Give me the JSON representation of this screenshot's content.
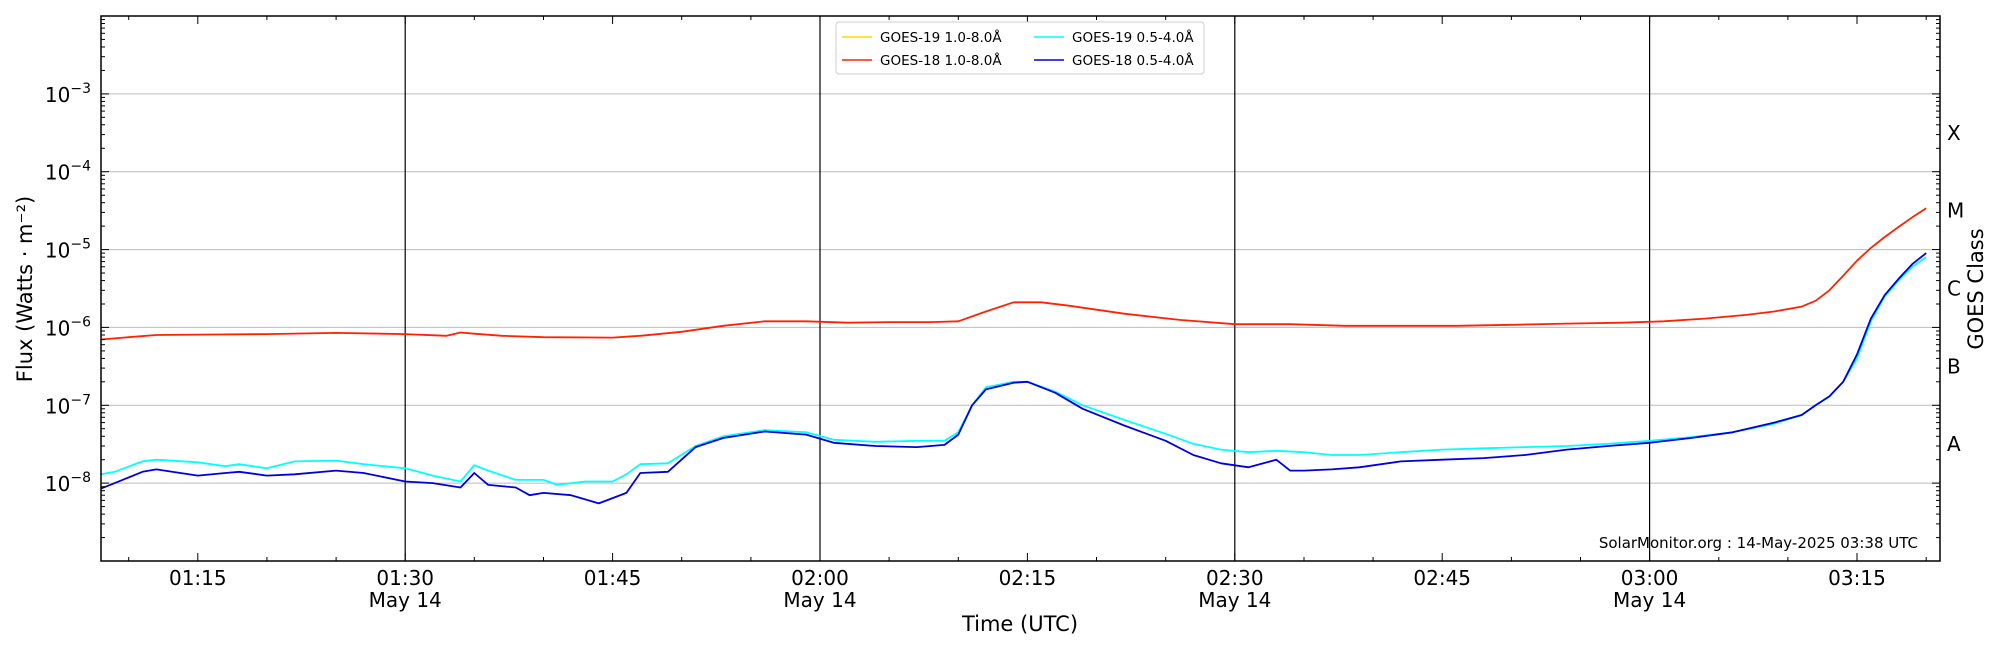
{
  "chart_data": {
    "type": "line",
    "title": "",
    "xlabel": "Time (UTC)",
    "ylabel": "Flux (Watts · m⁻²)",
    "ylabel_right": "GOES Class",
    "y_scale": "log",
    "ylim": [
      1e-09,
      0.01
    ],
    "xlim": [
      "01:08",
      "03:21"
    ],
    "x_ticks": [
      "01:15",
      "01:30",
      "01:45",
      "02:00",
      "02:15",
      "02:30",
      "02:45",
      "03:00",
      "03:15"
    ],
    "x_tick_dates": {
      "01:30": "May 14",
      "02:00": "May 14",
      "02:30": "May 14",
      "03:00": "May 14"
    },
    "vertical_lines": [
      "01:30",
      "02:00",
      "02:30",
      "03:00"
    ],
    "y_ticks": [
      {
        "value": 1e-08,
        "base": "10",
        "exp": "−8"
      },
      {
        "value": 1e-07,
        "base": "10",
        "exp": "−7"
      },
      {
        "value": 1e-06,
        "base": "10",
        "exp": "−6"
      },
      {
        "value": 1e-05,
        "base": "10",
        "exp": "−5"
      },
      {
        "value": 0.0001,
        "base": "10",
        "exp": "−4"
      },
      {
        "value": 0.001,
        "base": "10",
        "exp": "−3"
      }
    ],
    "grid": "horizontal",
    "classes": [
      {
        "label": "A",
        "value": 3.16e-08
      },
      {
        "label": "B",
        "value": 3.16e-07
      },
      {
        "label": "C",
        "value": 3.16e-06
      },
      {
        "label": "M",
        "value": 3.16e-05
      },
      {
        "label": "X",
        "value": 0.000316
      }
    ],
    "legend_position": "top-center",
    "credit": "SolarMonitor.org : 14-May-2025 03:38 UTC",
    "colors": {
      "goes19_long": "#ffd700",
      "goes18_long": "#ff2200",
      "goes19_short": "#00ffff",
      "goes18_short": "#0000dd"
    },
    "series": [
      {
        "name": "GOES-19 1.0-8.0Å",
        "color": "#ffd700",
        "x": [],
        "y": []
      },
      {
        "name": "GOES-18 1.0-8.0Å",
        "color": "#ff2200",
        "x": [
          "01:08",
          "01:10",
          "01:12",
          "01:15",
          "01:20",
          "01:25",
          "01:30",
          "01:33",
          "01:34",
          "01:35",
          "01:37",
          "01:40",
          "01:45",
          "01:47",
          "01:50",
          "01:53",
          "01:56",
          "01:59",
          "02:02",
          "02:05",
          "02:08",
          "02:10",
          "02:12",
          "02:14",
          "02:16",
          "02:18",
          "02:22",
          "02:26",
          "02:30",
          "02:34",
          "02:38",
          "02:42",
          "02:46",
          "02:50",
          "02:54",
          "02:58",
          "03:01",
          "03:04",
          "03:07",
          "03:09",
          "03:11",
          "03:12",
          "03:13",
          "03:14",
          "03:15",
          "03:16",
          "03:17",
          "03:18",
          "03:19",
          "03:20"
        ],
        "y": [
          7e-07,
          7.5e-07,
          8e-07,
          8.1e-07,
          8.2e-07,
          8.5e-07,
          8.2e-07,
          7.8e-07,
          8.6e-07,
          8.3e-07,
          7.8e-07,
          7.5e-07,
          7.4e-07,
          7.8e-07,
          8.8e-07,
          1.05e-06,
          1.2e-06,
          1.2e-06,
          1.15e-06,
          1.17e-06,
          1.17e-06,
          1.2e-06,
          1.6e-06,
          2.1e-06,
          2.1e-06,
          1.9e-06,
          1.5e-06,
          1.25e-06,
          1.1e-06,
          1.1e-06,
          1.05e-06,
          1.05e-06,
          1.05e-06,
          1.08e-06,
          1.12e-06,
          1.15e-06,
          1.2e-06,
          1.3e-06,
          1.45e-06,
          1.6e-06,
          1.85e-06,
          2.2e-06,
          3e-06,
          4.6e-06,
          7.2e-06,
          1.05e-05,
          1.45e-05,
          1.95e-05,
          2.6e-05,
          3.4e-05
        ]
      },
      {
        "name": "GOES-19 0.5-4.0Å",
        "color": "#00ffff",
        "x": [
          "01:08",
          "01:09",
          "01:11",
          "01:12",
          "01:15",
          "01:17",
          "01:18",
          "01:20",
          "01:22",
          "01:25",
          "01:27",
          "01:30",
          "01:32",
          "01:34",
          "01:35",
          "01:36",
          "01:38",
          "01:40",
          "01:41",
          "01:43",
          "01:45",
          "01:46",
          "01:47",
          "01:49",
          "01:51",
          "01:53",
          "01:56",
          "01:59",
          "02:01",
          "02:04",
          "02:07",
          "02:09",
          "02:10",
          "02:11",
          "02:12",
          "02:14",
          "02:15",
          "02:17",
          "02:19",
          "02:22",
          "02:25",
          "02:27",
          "02:29",
          "02:31",
          "02:33",
          "02:35",
          "02:37",
          "02:39",
          "02:42",
          "02:45",
          "02:48",
          "02:51",
          "02:54",
          "02:57",
          "03:00",
          "03:03",
          "03:06",
          "03:09",
          "03:11",
          "03:12",
          "03:13",
          "03:14",
          "03:15",
          "03:16",
          "03:17",
          "03:18",
          "03:19",
          "03:20"
        ],
        "y": [
          1.3e-08,
          1.4e-08,
          1.9e-08,
          2e-08,
          1.85e-08,
          1.65e-08,
          1.75e-08,
          1.55e-08,
          1.9e-08,
          1.95e-08,
          1.75e-08,
          1.55e-08,
          1.25e-08,
          1.05e-08,
          1.7e-08,
          1.45e-08,
          1.1e-08,
          1.1e-08,
          9.5e-09,
          1.05e-08,
          1.05e-08,
          1.3e-08,
          1.75e-08,
          1.8e-08,
          3e-08,
          4e-08,
          4.8e-08,
          4.5e-08,
          3.6e-08,
          3.4e-08,
          3.5e-08,
          3.5e-08,
          4.5e-08,
          1e-07,
          1.7e-07,
          2e-07,
          2e-07,
          1.5e-07,
          1e-07,
          6.5e-08,
          4.3e-08,
          3.2e-08,
          2.7e-08,
          2.5e-08,
          2.6e-08,
          2.5e-08,
          2.3e-08,
          2.3e-08,
          2.5e-08,
          2.7e-08,
          2.8e-08,
          2.9e-08,
          3e-08,
          3.2e-08,
          3.5e-08,
          3.9e-08,
          4.5e-08,
          5.8e-08,
          7.5e-08,
          1e-07,
          1.3e-07,
          2e-07,
          4e-07,
          1.2e-06,
          2.5e-06,
          4e-06,
          6e-06,
          8e-06
        ]
      },
      {
        "name": "GOES-18 0.5-4.0Å",
        "color": "#0000dd",
        "x": [
          "01:08",
          "01:09",
          "01:11",
          "01:12",
          "01:15",
          "01:17",
          "01:18",
          "01:20",
          "01:22",
          "01:25",
          "01:27",
          "01:30",
          "01:32",
          "01:34",
          "01:35",
          "01:36",
          "01:38",
          "01:39",
          "01:40",
          "01:42",
          "01:44",
          "01:46",
          "01:47",
          "01:49",
          "01:51",
          "01:53",
          "01:56",
          "01:59",
          "02:01",
          "02:04",
          "02:07",
          "02:09",
          "02:10",
          "02:11",
          "02:12",
          "02:14",
          "02:15",
          "02:17",
          "02:19",
          "02:22",
          "02:25",
          "02:27",
          "02:29",
          "02:31",
          "02:33",
          "02:34",
          "02:35",
          "02:37",
          "02:39",
          "02:42",
          "02:45",
          "02:48",
          "02:51",
          "02:54",
          "02:57",
          "03:00",
          "03:03",
          "03:06",
          "03:09",
          "03:11",
          "03:12",
          "03:13",
          "03:14",
          "03:15",
          "03:16",
          "03:17",
          "03:18",
          "03:19",
          "03:20"
        ],
        "y": [
          8.5e-09,
          1e-08,
          1.4e-08,
          1.5e-08,
          1.25e-08,
          1.35e-08,
          1.4e-08,
          1.25e-08,
          1.3e-08,
          1.45e-08,
          1.35e-08,
          1.05e-08,
          1e-08,
          8.8e-09,
          1.35e-08,
          9.5e-09,
          8.8e-09,
          7e-09,
          7.5e-09,
          7e-09,
          5.5e-09,
          7.5e-09,
          1.35e-08,
          1.4e-08,
          2.9e-08,
          3.8e-08,
          4.6e-08,
          4.2e-08,
          3.3e-08,
          3e-08,
          2.9e-08,
          3.1e-08,
          4.2e-08,
          1e-07,
          1.6e-07,
          1.95e-07,
          2e-07,
          1.45e-07,
          9e-08,
          5.5e-08,
          3.5e-08,
          2.3e-08,
          1.8e-08,
          1.6e-08,
          2e-08,
          1.45e-08,
          1.45e-08,
          1.5e-08,
          1.6e-08,
          1.9e-08,
          2e-08,
          2.1e-08,
          2.3e-08,
          2.7e-08,
          3e-08,
          3.3e-08,
          3.8e-08,
          4.5e-08,
          6e-08,
          7.5e-08,
          1e-07,
          1.3e-07,
          2e-07,
          4.5e-07,
          1.3e-06,
          2.6e-06,
          4.2e-06,
          6.5e-06,
          9e-06
        ]
      }
    ]
  }
}
